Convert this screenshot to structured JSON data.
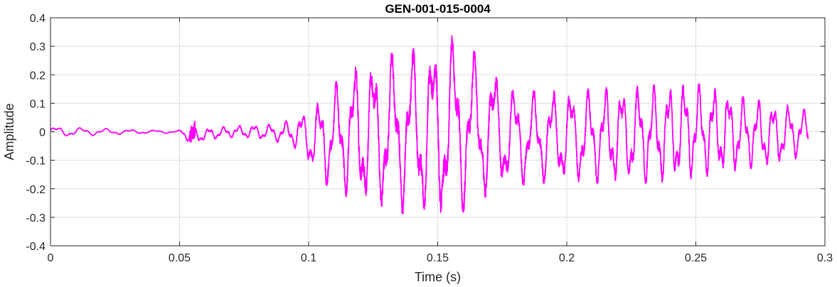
{
  "chart_data": {
    "type": "line",
    "title": "GEN-001-015-0004",
    "xlabel": "Time (s)",
    "ylabel": "Amplitude",
    "xlim": [
      0,
      0.3
    ],
    "ylim": [
      -0.4,
      0.4
    ],
    "xticks": [
      0,
      0.05,
      0.1,
      0.15,
      0.2,
      0.25,
      0.3
    ],
    "xtick_labels": [
      "0",
      "0.05",
      "0.1",
      "0.15",
      "0.2",
      "0.25",
      "0.3"
    ],
    "yticks": [
      -0.4,
      -0.3,
      -0.2,
      -0.1,
      0,
      0.1,
      0.2,
      0.3,
      0.4
    ],
    "ytick_labels": [
      "-0.4",
      "-0.3",
      "-0.2",
      "-0.1",
      "0",
      "0.1",
      "0.2",
      "0.3",
      "0.4"
    ],
    "grid": true,
    "series": [
      {
        "color": "#ff00ff",
        "note_x_end": 0.2935,
        "envelope": {
          "t": [
            0,
            0.01,
            0.02,
            0.03,
            0.04,
            0.05,
            0.055,
            0.06,
            0.07,
            0.08,
            0.09,
            0.095,
            0.1,
            0.105,
            0.11,
            0.12,
            0.13,
            0.14,
            0.15,
            0.155,
            0.16,
            0.17,
            0.18,
            0.19,
            0.2,
            0.21,
            0.22,
            0.23,
            0.24,
            0.245,
            0.25,
            0.26,
            0.27,
            0.28,
            0.29,
            0.2935
          ],
          "upper": [
            0.02,
            0.015,
            0.012,
            0.008,
            0.006,
            0.005,
            0.015,
            0.012,
            0.02,
            0.025,
            0.03,
            0.06,
            0.08,
            0.12,
            0.17,
            0.25,
            0.27,
            0.29,
            0.33,
            0.34,
            0.31,
            0.24,
            0.15,
            0.14,
            0.15,
            0.15,
            0.16,
            0.16,
            0.17,
            0.18,
            0.17,
            0.15,
            0.12,
            0.1,
            0.09,
            0.07
          ],
          "lower": [
            -0.02,
            -0.015,
            -0.012,
            -0.008,
            -0.006,
            -0.005,
            -0.05,
            -0.03,
            -0.02,
            -0.025,
            -0.04,
            -0.06,
            -0.12,
            -0.18,
            -0.2,
            -0.26,
            -0.28,
            -0.29,
            -0.32,
            -0.3,
            -0.28,
            -0.22,
            -0.19,
            -0.18,
            -0.18,
            -0.18,
            -0.18,
            -0.18,
            -0.18,
            -0.17,
            -0.16,
            -0.15,
            -0.13,
            -0.12,
            -0.09,
            -0.07
          ]
        }
      }
    ]
  }
}
